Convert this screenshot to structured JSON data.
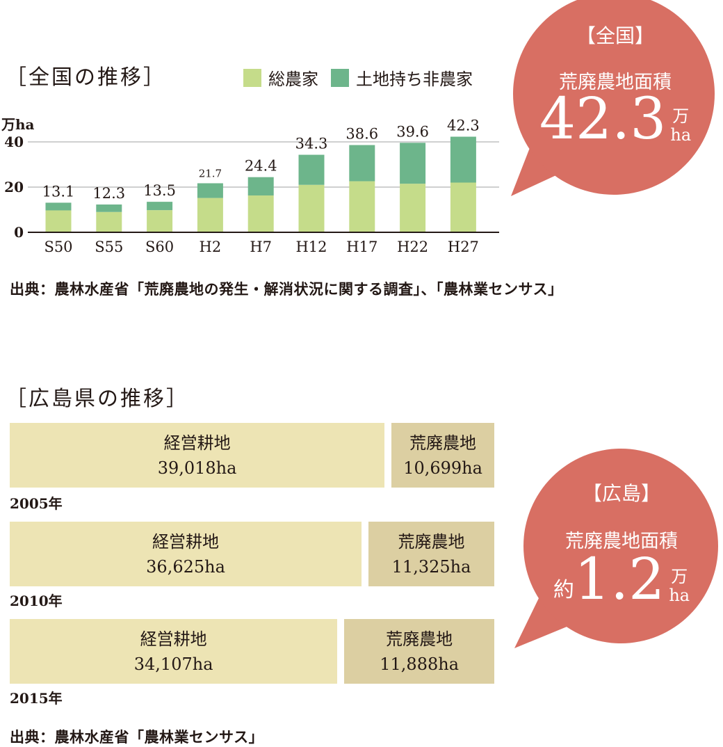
{
  "national": {
    "title": "［全国の推移］",
    "legend": [
      {
        "label": "総農家",
        "color": "#c5dc8a"
      },
      {
        "label": "土地持ち非農家",
        "color": "#6db58b"
      }
    ],
    "unit": "万ha",
    "source": "出典：農林水産省「荒廃農地の発生・解消状況に関する調査」、「農林業センサス」",
    "bubble": {
      "tag": "【全国】",
      "label": "荒廃農地面積",
      "value": "42.3",
      "unit_top": "万",
      "unit_bottom": "ha",
      "color": "#d86f63"
    }
  },
  "chart_data": {
    "type": "bar",
    "stacked": true,
    "categories": [
      "S50",
      "S55",
      "S60",
      "H2",
      "H7",
      "H12",
      "H17",
      "H22",
      "H27"
    ],
    "series": [
      {
        "name": "総農家",
        "color": "#c5dc8a",
        "values": [
          9.7,
          9.0,
          9.8,
          15.2,
          16.3,
          21.0,
          22.6,
          21.5,
          22.0
        ]
      },
      {
        "name": "土地持ち非農家",
        "color": "#6db58b",
        "values": [
          3.4,
          3.3,
          3.7,
          6.5,
          8.1,
          13.3,
          16.0,
          18.1,
          20.3
        ]
      }
    ],
    "totals": [
      "13.1",
      "12.3",
      "13.5",
      "21.7",
      "24.4",
      "34.3",
      "38.6",
      "39.6",
      "42.3"
    ],
    "yticks": [
      0,
      20,
      40
    ],
    "ylim": [
      0,
      45
    ],
    "ylabel": "万ha",
    "grid": true
  },
  "hiroshima": {
    "title": "［広島県の推移］",
    "rows": [
      {
        "year": "2005年",
        "cultivated_label": "経営耕地",
        "cultivated_value": "39,018ha",
        "cultivated": 39018,
        "abandoned_label": "荒廃農地",
        "abandoned_value": "10,699ha",
        "abandoned": 10699
      },
      {
        "year": "2010年",
        "cultivated_label": "経営耕地",
        "cultivated_value": "36,625ha",
        "cultivated": 36625,
        "abandoned_label": "荒廃農地",
        "abandoned_value": "11,325ha",
        "abandoned": 11325
      },
      {
        "year": "2015年",
        "cultivated_label": "経営耕地",
        "cultivated_value": "34,107ha",
        "cultivated": 34107,
        "abandoned_label": "荒廃農地",
        "abandoned_value": "11,888ha",
        "abandoned": 11888
      }
    ],
    "colors": {
      "cultivated": "#ede4b4",
      "abandoned": "#dccfa2"
    },
    "source": "出典：農林水産省「農林業センサス」",
    "bubble": {
      "tag": "【広島】",
      "label": "荒廃農地面積",
      "prefix": "約",
      "value": "1.2",
      "unit_top": "万",
      "unit_bottom": "ha",
      "color": "#d86f63"
    }
  }
}
